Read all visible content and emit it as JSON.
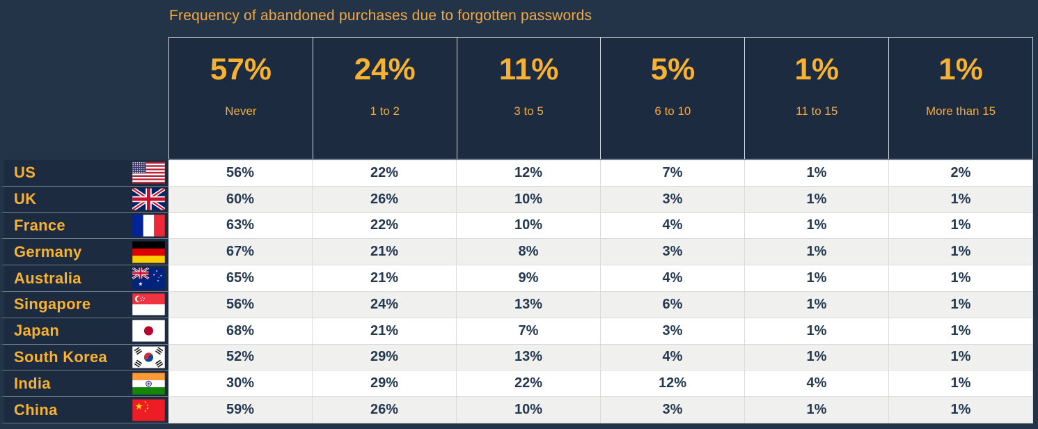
{
  "title": "Frequency of abandoned purchases due to forgotten passwords",
  "colors": {
    "accent_gold": "#F7B232",
    "title_gold": "#F0A844",
    "page_bg": "#233449",
    "panel_bg": "#1C2B40",
    "data_text": "#24384F",
    "row_white": "#FFFFFF",
    "row_gray": "#F0F0EF"
  },
  "chart_data": {
    "type": "table",
    "title": "Frequency of abandoned purchases due to forgotten passwords",
    "columns": [
      {
        "percent": "57%",
        "label": "Never"
      },
      {
        "percent": "24%",
        "label": "1 to 2"
      },
      {
        "percent": "11%",
        "label": "3 to 5"
      },
      {
        "percent": "5%",
        "label": "6 to 10"
      },
      {
        "percent": "1%",
        "label": "11 to 15"
      },
      {
        "percent": "1%",
        "label": "More than 15"
      }
    ],
    "rows": [
      {
        "country": "US",
        "flag": "us",
        "values": [
          "56%",
          "22%",
          "12%",
          "7%",
          "1%",
          "2%"
        ]
      },
      {
        "country": "UK",
        "flag": "uk",
        "values": [
          "60%",
          "26%",
          "10%",
          "3%",
          "1%",
          "1%"
        ]
      },
      {
        "country": "France",
        "flag": "france",
        "values": [
          "63%",
          "22%",
          "10%",
          "4%",
          "1%",
          "1%"
        ]
      },
      {
        "country": "Germany",
        "flag": "germany",
        "values": [
          "67%",
          "21%",
          "8%",
          "3%",
          "1%",
          "1%"
        ]
      },
      {
        "country": "Australia",
        "flag": "australia",
        "values": [
          "65%",
          "21%",
          "9%",
          "4%",
          "1%",
          "1%"
        ]
      },
      {
        "country": "Singapore",
        "flag": "singapore",
        "values": [
          "56%",
          "24%",
          "13%",
          "6%",
          "1%",
          "1%"
        ]
      },
      {
        "country": "Japan",
        "flag": "japan",
        "values": [
          "68%",
          "21%",
          "7%",
          "3%",
          "1%",
          "1%"
        ]
      },
      {
        "country": "South Korea",
        "flag": "south-korea",
        "values": [
          "52%",
          "29%",
          "13%",
          "4%",
          "1%",
          "1%"
        ]
      },
      {
        "country": "India",
        "flag": "india",
        "values": [
          "30%",
          "29%",
          "22%",
          "12%",
          "4%",
          "1%"
        ]
      },
      {
        "country": "China",
        "flag": "china",
        "values": [
          "59%",
          "26%",
          "10%",
          "3%",
          "1%",
          "1%"
        ]
      }
    ]
  }
}
